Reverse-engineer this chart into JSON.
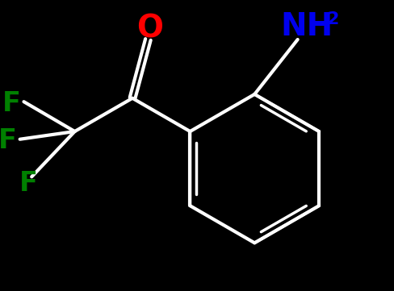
{
  "bg_color": "#000000",
  "atom_colors": {
    "O": "#ff0000",
    "N": "#0000ee",
    "F": "#008000",
    "C": "#ffffff"
  },
  "bond_color": "#ffffff",
  "bond_width": 3.0,
  "figsize": [
    4.89,
    3.61
  ],
  "dpi": 100,
  "font_size_main": 24,
  "font_size_sub": 16
}
